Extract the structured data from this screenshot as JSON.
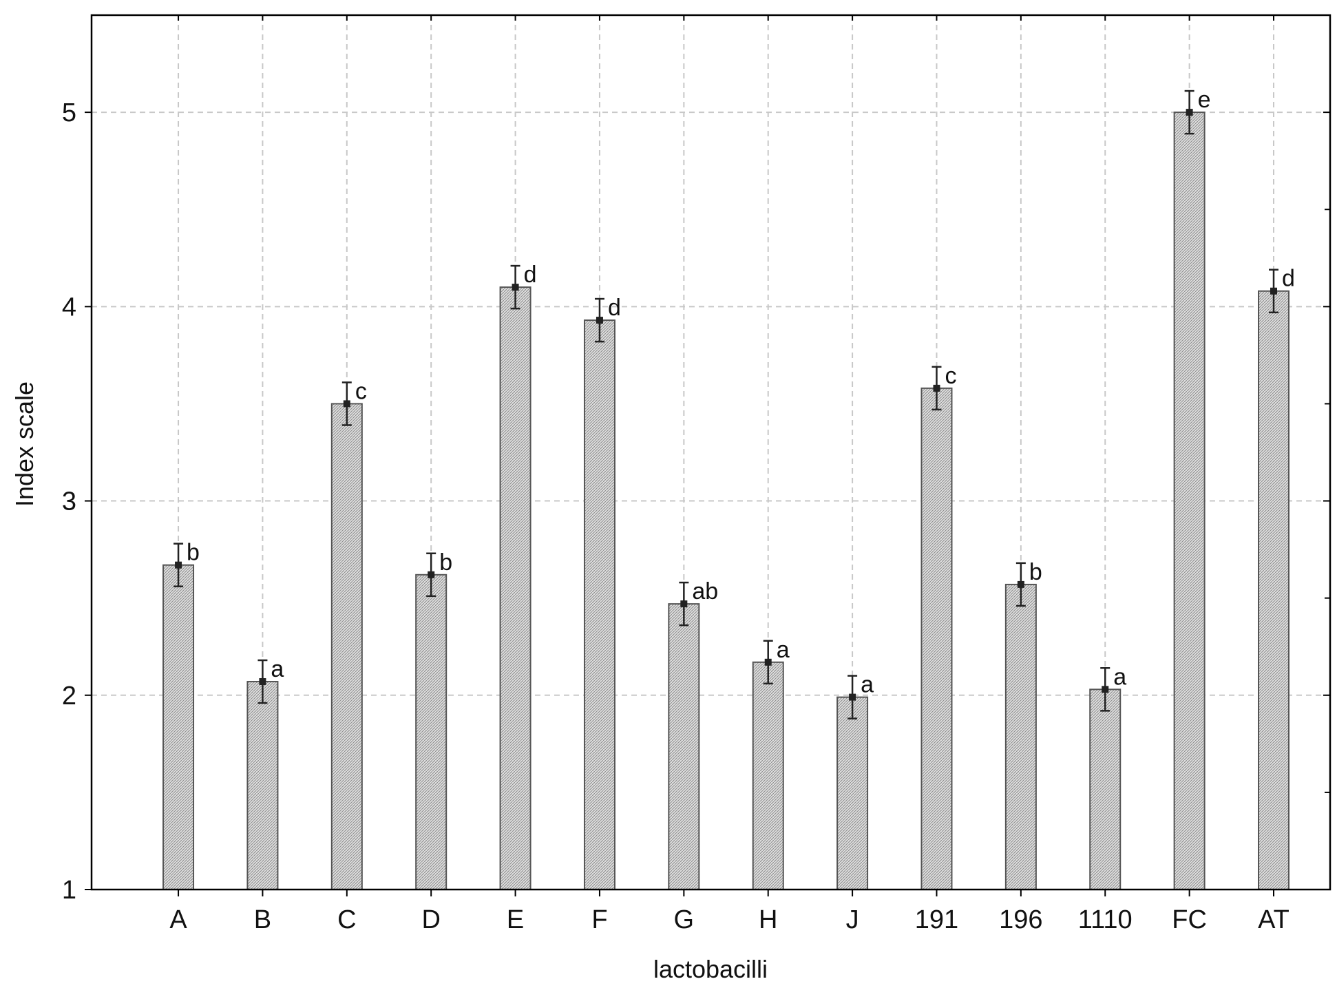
{
  "chart_data": {
    "type": "bar",
    "title": "",
    "xlabel": "lactobacilli",
    "ylabel": "Index scale",
    "ylim": [
      1,
      5.5
    ],
    "yticks": [
      "1",
      "2",
      "3",
      "4",
      "5"
    ],
    "grid": true,
    "categories": [
      "A",
      "B",
      "C",
      "D",
      "E",
      "F",
      "G",
      "H",
      "J",
      "191",
      "196",
      "1110",
      "FC",
      "AT"
    ],
    "values": [
      2.67,
      2.07,
      3.5,
      2.62,
      4.1,
      3.93,
      2.47,
      2.17,
      1.99,
      3.58,
      2.57,
      2.03,
      5.0,
      4.08
    ],
    "error": [
      0.11,
      0.11,
      0.11,
      0.11,
      0.11,
      0.11,
      0.11,
      0.11,
      0.11,
      0.11,
      0.11,
      0.11,
      0.11,
      0.11
    ],
    "letters": [
      "b",
      "a",
      "c",
      "b",
      "d",
      "d",
      "ab",
      "a",
      "a",
      "c",
      "b",
      "a",
      "e",
      "d"
    ],
    "colors": {
      "bar_fill": "#d6d6d6",
      "bar_stroke": "#555555",
      "grid": "#c8c8c8",
      "axis": "#000000",
      "error": "#222222"
    }
  }
}
